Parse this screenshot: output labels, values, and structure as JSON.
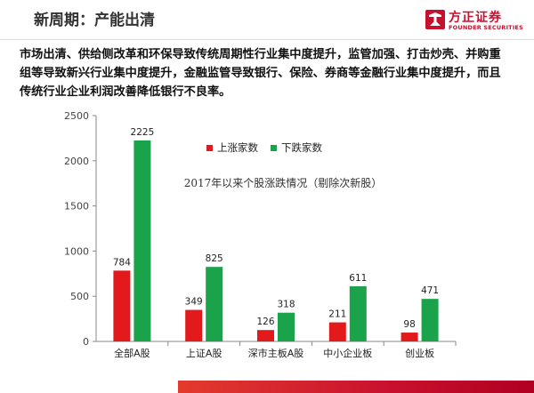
{
  "slide": {
    "title": "新周期：产能出清",
    "paragraph_lines": [
      "市场出清、供给侧改革和环保导致传统周期性行业集中度提升，监管加强、打击炒壳、并购重",
      "组等导致新兴行业集中度提升，金融监管导致银行、保险、券商等金融行业集中度提升，而且",
      "传统行业企业利润改善降低银行不良率。"
    ]
  },
  "logo": {
    "name_cn": "方正证券",
    "name_en": "FOUNDER SECURITIES",
    "mark_icon": "founder-logo-icon",
    "color": "#c8102e"
  },
  "chart_data": {
    "type": "bar",
    "title": "2017年以来个股涨跌情况（剔除次新股）",
    "categories": [
      "全部A股",
      "上证A股",
      "深市主板A股",
      "中小企业板",
      "创业板"
    ],
    "series": [
      {
        "name": "上涨家数",
        "color": "#e31a1c",
        "values": [
          784,
          349,
          126,
          211,
          98
        ]
      },
      {
        "name": "下跌家数",
        "color": "#1aa34a",
        "values": [
          2225,
          825,
          318,
          611,
          471
        ]
      }
    ],
    "ylim": [
      0,
      2500
    ],
    "yticks": [
      0,
      500,
      1000,
      1500,
      2000,
      2500
    ],
    "grid": false,
    "legend": "top-center"
  }
}
